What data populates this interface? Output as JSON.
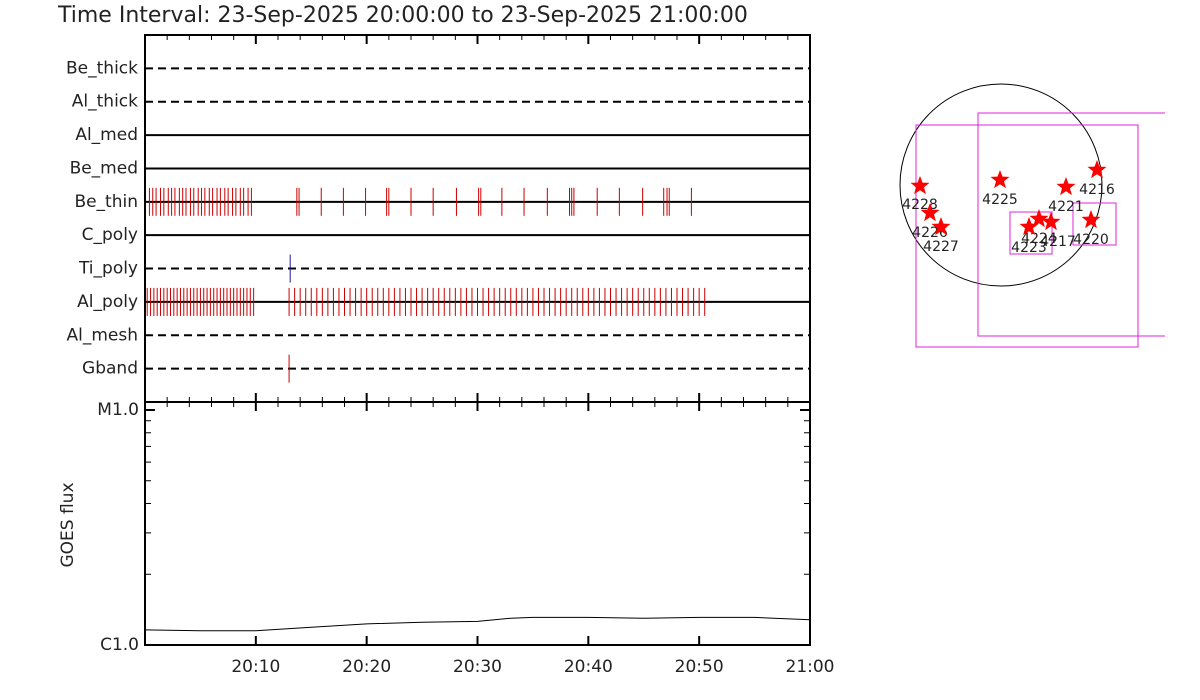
{
  "chart_data": [
    {
      "type": "timeline",
      "title": "Time Interval: 23-Sep-2025 20:00:00 to 23-Sep-2025 21:00:00",
      "xlim": [
        0,
        60
      ],
      "xticks": [
        0,
        10,
        20,
        30,
        40,
        50,
        60
      ],
      "xminorticks": [
        2,
        4,
        6,
        8,
        12,
        14,
        16,
        18,
        22,
        24,
        26,
        28,
        32,
        34,
        36,
        38,
        42,
        44,
        46,
        48,
        52,
        54,
        56,
        58
      ],
      "rows": [
        {
          "name": "Be_thick",
          "style": "dashed",
          "color": "#cc0000",
          "times": []
        },
        {
          "name": "Al_thick",
          "style": "dashed",
          "color": "#cc0000",
          "times": []
        },
        {
          "name": "Al_med",
          "style": "solid",
          "color": "#cc0000",
          "times": []
        },
        {
          "name": "Be_med",
          "style": "solid",
          "color": "#cc0000",
          "times": []
        },
        {
          "name": "Be_thin",
          "style": "solid",
          "color": "#cc0000",
          "times": [
            0.4,
            0.7,
            1.0,
            1.4,
            1.7,
            2.1,
            2.4,
            2.7,
            3.1,
            3.4,
            3.7,
            4.1,
            4.4,
            4.8,
            5.1,
            5.4,
            5.8,
            6.1,
            6.5,
            6.8,
            7.2,
            7.5,
            7.9,
            8.2,
            8.6,
            8.9,
            9.3,
            9.6,
            13.7,
            13.9,
            15.9,
            17.9,
            19.9,
            21.8,
            22.0,
            24.0,
            26.0,
            28.1,
            30.1,
            30.3,
            32.2,
            34.2,
            36.3,
            38.3,
            38.5,
            38.7,
            40.8,
            42.8,
            44.9,
            46.8,
            47.1,
            47.3,
            49.3
          ]
        },
        {
          "name": "C_poly",
          "style": "solid",
          "color": "#cc0000",
          "times": []
        },
        {
          "name": "Ti_poly",
          "style": "dashed",
          "color": "#1a1a99",
          "times": [
            13.1
          ]
        },
        {
          "name": "Al_poly",
          "style": "solid",
          "color": "#cc0000",
          "times": [
            0.2,
            0.5,
            0.8,
            1.1,
            1.4,
            1.7,
            2.0,
            2.3,
            2.6,
            2.9,
            3.2,
            3.5,
            3.8,
            4.1,
            4.4,
            4.7,
            5.0,
            5.3,
            5.6,
            5.9,
            6.2,
            6.5,
            6.8,
            7.1,
            7.4,
            7.7,
            8.0,
            8.3,
            8.6,
            8.9,
            9.2,
            9.5,
            9.8,
            13.0,
            13.5,
            14.0,
            14.5,
            15.0,
            15.5,
            16.0,
            16.5,
            17.0,
            17.5,
            18.0,
            18.5,
            19.0,
            19.5,
            20.0,
            20.5,
            21.0,
            21.5,
            22.0,
            22.5,
            23.0,
            23.5,
            24.0,
            24.5,
            25.0,
            25.5,
            26.0,
            26.5,
            27.0,
            27.5,
            28.0,
            28.5,
            29.0,
            29.5,
            30.0,
            30.5,
            31.0,
            31.5,
            32.0,
            32.5,
            33.0,
            33.5,
            34.0,
            34.5,
            35.0,
            35.5,
            36.0,
            36.5,
            37.0,
            37.5,
            38.0,
            38.5,
            39.0,
            39.5,
            40.0,
            40.5,
            41.0,
            41.5,
            42.0,
            42.5,
            43.0,
            43.5,
            44.0,
            44.5,
            45.0,
            45.5,
            46.0,
            46.5,
            47.0,
            47.5,
            48.0,
            48.5,
            49.0,
            49.5,
            50.0,
            50.5
          ]
        },
        {
          "name": "Al_mesh",
          "style": "dashed",
          "color": "#cc0000",
          "times": []
        },
        {
          "name": "Gband",
          "style": "dashed",
          "color": "#cc0000",
          "times": [
            13.0
          ]
        }
      ]
    },
    {
      "type": "line",
      "ylabel": "GOES flux",
      "log_y": true,
      "color": "#000000",
      "xlim": [
        0,
        60
      ],
      "xticks": [
        {
          "value": 10,
          "label": "20:10"
        },
        {
          "value": 20,
          "label": "20:20"
        },
        {
          "value": 30,
          "label": "20:30"
        },
        {
          "value": 40,
          "label": "20:40"
        },
        {
          "value": 50,
          "label": "20:50"
        },
        {
          "value": 60,
          "label": "21:00"
        }
      ],
      "ylim": [
        1e-06,
        1e-05
      ],
      "yticks": [
        {
          "value": 1e-06,
          "label": "C1.0"
        },
        {
          "value": 1e-05,
          "label": "M1.0"
        }
      ],
      "yminorticks": [
        2e-06,
        3e-06,
        4e-06,
        5e-06,
        6e-06,
        7e-06,
        8e-06,
        9e-06
      ],
      "x": [
        0,
        5,
        10,
        15,
        20,
        25,
        30,
        33,
        35,
        40,
        45,
        50,
        55,
        60
      ],
      "values": [
        1.16e-06,
        1.15e-06,
        1.15e-06,
        1.19e-06,
        1.23e-06,
        1.25e-06,
        1.26e-06,
        1.3e-06,
        1.31e-06,
        1.31e-06,
        1.3e-06,
        1.31e-06,
        1.31e-06,
        1.28e-06
      ]
    },
    {
      "type": "map",
      "star_color": "#ff0000",
      "box_color": "#e020e0",
      "labels": [
        "4228",
        "4226",
        "4227",
        "4225",
        "4221",
        "4216",
        "4224",
        "4223",
        "4217",
        "4220"
      ]
    }
  ]
}
